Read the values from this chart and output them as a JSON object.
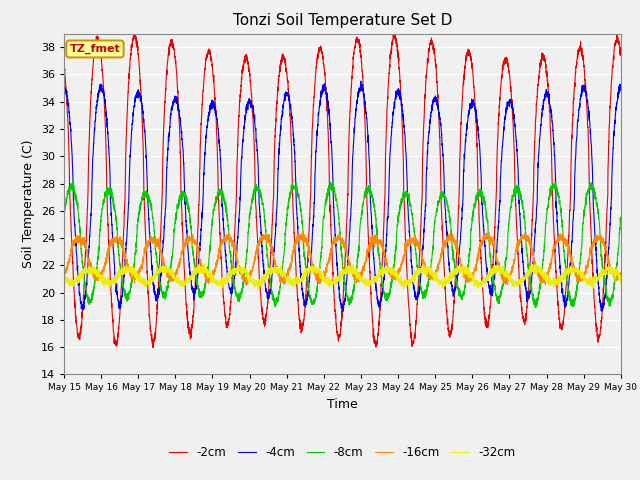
{
  "title": "Tonzi Soil Temperature Set D",
  "xlabel": "Time",
  "ylabel": "Soil Temperature (C)",
  "ylim": [
    14,
    39
  ],
  "yticks": [
    14,
    16,
    18,
    20,
    22,
    24,
    26,
    28,
    30,
    32,
    34,
    36,
    38
  ],
  "background_color": "#f0f0f0",
  "plot_bg_color": "#f0f0f0",
  "legend_label": "TZ_fmet",
  "legend_box_color": "#ffff99",
  "legend_box_edge": "#cc9900",
  "legend_text_color": "#cc0000",
  "series": [
    {
      "label": "-2cm",
      "color": "#ee0000",
      "amp": 10.5,
      "base": 27.5,
      "min_base": 17.5,
      "phase": 0.0,
      "lag": 0.0
    },
    {
      "label": "-4cm",
      "color": "#0000ee",
      "amp": 7.5,
      "base": 27.0,
      "min_base": 19.5,
      "phase": 0.0,
      "lag": 0.1
    },
    {
      "label": "-8cm",
      "color": "#00cc00",
      "amp": 4.0,
      "base": 23.5,
      "min_base": 19.5,
      "phase": 0.0,
      "lag": 0.3
    },
    {
      "label": "-16cm",
      "color": "#ff8800",
      "amp": 1.5,
      "base": 22.5,
      "min_base": 20.5,
      "phase": 0.0,
      "lag": 0.5
    },
    {
      "label": "-32cm",
      "color": "#eeee00",
      "amp": 0.5,
      "base": 21.2,
      "min_base": 20.5,
      "phase": 0.0,
      "lag": 0.8
    }
  ],
  "x_start_day": 15,
  "x_end_day": 30,
  "n_points": 3600,
  "period_days": 1.0,
  "xtick_days": [
    15,
    16,
    17,
    18,
    19,
    20,
    21,
    22,
    23,
    24,
    25,
    26,
    27,
    28,
    29,
    30
  ],
  "xtick_labels": [
    "May 15",
    "May 16",
    "May 17",
    "May 18",
    "May 19",
    "May 20",
    "May 21",
    "May 22",
    "May 23",
    "May 24",
    "May 25",
    "May 26",
    "May 27",
    "May 28",
    "May 29",
    "May 30"
  ]
}
